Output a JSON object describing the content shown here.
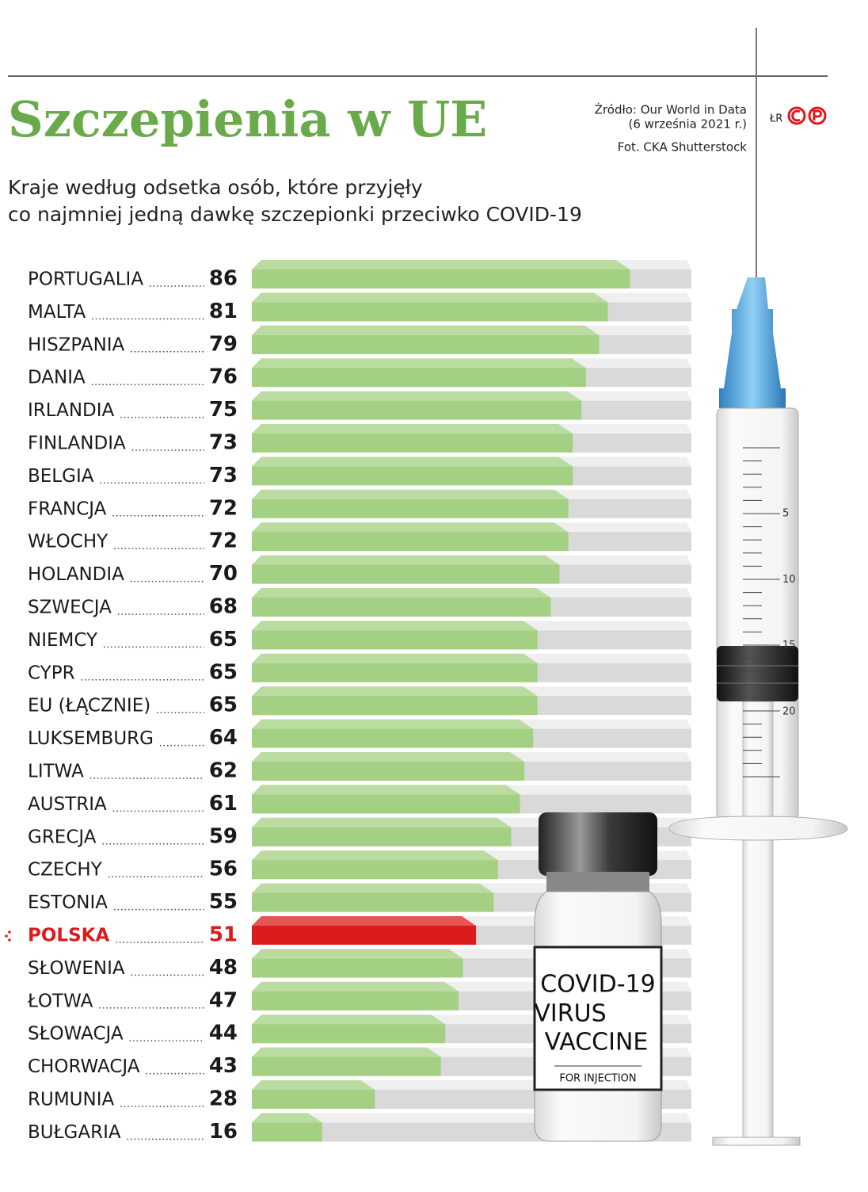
{
  "chart_data": {
    "type": "bar",
    "title": "Szczepienia w UE",
    "subtitle": [
      "Kraje według odsetka osób, które przyjęły",
      "co najmniej jedną dawkę szczepionki przeciwko COVID-19"
    ],
    "source": [
      "Źródło: Our World in Data",
      "(6 września 2021 r.)"
    ],
    "credit": "Fot. CKA Shutterstock",
    "logo": "ŁR",
    "categories": [
      "PORTUGALIA",
      "MALTA",
      "HISZPANIA",
      "DANIA",
      "IRLANDIA",
      "FINLANDIA",
      "BELGIA",
      "FRANCJA",
      "WŁOCHY",
      "HOLANDIA",
      "SZWECJA",
      "NIEMCY",
      "CYPR",
      "EU (ŁĄCZNIE)",
      "LUKSEMBURG",
      "LITWA",
      "AUSTRIA",
      "GRECJA",
      "CZECHY",
      "ESTONIA",
      "POLSKA",
      "SŁOWENIA",
      "ŁOTWA",
      "SŁOWACJA",
      "CHORWACJA",
      "RUMUNIA",
      "BUŁGARIA"
    ],
    "values": [
      86,
      81,
      79,
      76,
      75,
      73,
      73,
      72,
      72,
      70,
      68,
      65,
      65,
      65,
      64,
      62,
      61,
      59,
      56,
      55,
      51,
      48,
      47,
      44,
      43,
      28,
      16
    ],
    "colors": [
      "#a3d082",
      "#a3d082",
      "#a3d082",
      "#a3d082",
      "#a3d082",
      "#a3d082",
      "#a3d082",
      "#a3d082",
      "#a3d082",
      "#a3d082",
      "#a3d082",
      "#a3d082",
      "#a3d082",
      "#a3d082",
      "#a3d082",
      "#a3d082",
      "#a3d082",
      "#a3d082",
      "#a3d082",
      "#a3d082",
      "#dc1c1c",
      "#a3d082",
      "#a3d082",
      "#a3d082",
      "#a3d082",
      "#a3d082",
      "#a3d082"
    ],
    "xlim": [
      0,
      100
    ],
    "vial_label": [
      "COVID-19",
      "VIRUS",
      "VACCINE"
    ],
    "vial_sublabel": "FOR INJECTION",
    "syringe_scale": [
      5,
      10,
      15,
      20
    ]
  }
}
